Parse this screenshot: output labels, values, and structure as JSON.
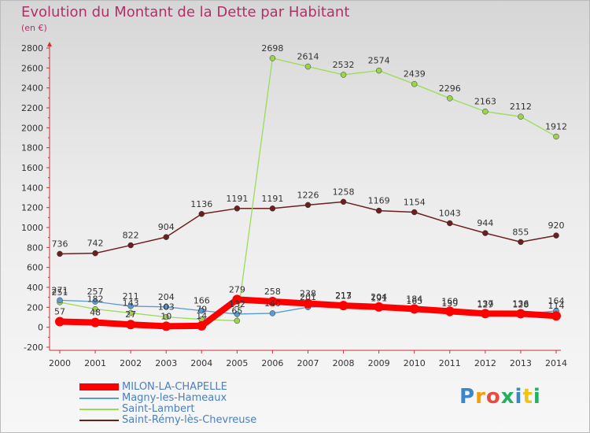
{
  "header": {
    "title": "Evolution du Montant de la Dette par Habitant",
    "unit": "(en €)"
  },
  "logo": {
    "text": "Proxiti"
  },
  "chart_data": {
    "type": "line",
    "title": "Evolution du Montant de la Dette par Habitant",
    "ylabel": "(en €)",
    "xlabel": "",
    "x": [
      2000,
      2001,
      2002,
      2003,
      2004,
      2005,
      2006,
      2007,
      2008,
      2009,
      2010,
      2011,
      2012,
      2013,
      2014
    ],
    "ylim": [
      -200,
      2800
    ],
    "yticks": [
      -200,
      0,
      200,
      400,
      600,
      800,
      1000,
      1200,
      1400,
      1600,
      1800,
      2000,
      2200,
      2400,
      2600,
      2800
    ],
    "grid": false,
    "legend_position": "bottom-left",
    "series": [
      {
        "name": "MILON-LA-CHAPELLE",
        "color": "#ff0000",
        "values": [
          57,
          48,
          27,
          10,
          14,
          279,
          258,
          238,
          217,
          204,
          184,
          160,
          137,
          136,
          114
        ],
        "labels": [
          "57",
          "48",
          "27",
          "10",
          "14",
          "279",
          "258",
          "238",
          "217",
          "204",
          "184",
          "160",
          "137",
          "136",
          "114"
        ]
      },
      {
        "name": "Magny-les-Hameaux",
        "color": "#5b9bd5",
        "values": [
          271,
          257,
          211,
          204,
          166,
          132,
          140,
          201,
          213,
          191,
          165,
          139,
          129,
          128,
          164
        ],
        "labels": [
          "271",
          "257",
          "211",
          "204",
          "166",
          "132",
          "140",
          "201",
          "213",
          "191",
          "165",
          "139",
          "129",
          "128",
          "164"
        ]
      },
      {
        "name": "Saint-Lambert",
        "color": "#99dd55",
        "values": [
          251,
          182,
          143,
          103,
          79,
          65,
          2698,
          2614,
          2532,
          2574,
          2439,
          2296,
          2163,
          2112,
          1912
        ],
        "labels": [
          "251",
          "182",
          "143",
          "103",
          "79",
          "65",
          "2698",
          "2614",
          "2532",
          "2574",
          "2439",
          "2296",
          "2163",
          "2112",
          "1912"
        ]
      },
      {
        "name": "Saint-Rémy-lès-Chevreuse",
        "color": "#6b1f1f",
        "values": [
          736,
          742,
          822,
          904,
          1136,
          1191,
          1191,
          1226,
          1258,
          1169,
          1154,
          1043,
          944,
          855,
          920
        ],
        "labels": [
          "736",
          "742",
          "822",
          "904",
          "1136",
          "1191",
          "1191",
          "1226",
          "1258",
          "1169",
          "1154",
          "1043",
          "944",
          "855",
          "920"
        ]
      }
    ]
  }
}
